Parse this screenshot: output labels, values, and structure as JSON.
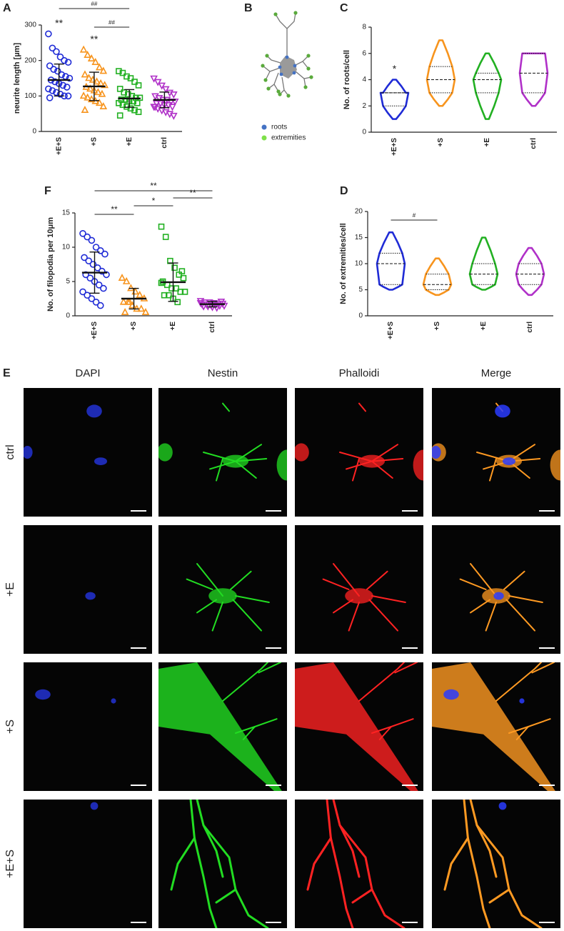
{
  "chart_data": [
    {
      "panel": "A",
      "type": "dot",
      "ylabel": "neurite length [µm]",
      "ylim": [
        0,
        300
      ],
      "yticks": [
        0,
        100,
        200,
        300
      ],
      "categories": [
        "+E+S",
        "+S",
        "+E",
        "ctrl"
      ],
      "groups": [
        {
          "color": "#1f2bd6",
          "marker": "circle",
          "mean": 145,
          "sd": 45,
          "points": [
            275,
            235,
            225,
            210,
            200,
            195,
            185,
            175,
            170,
            160,
            155,
            150,
            145,
            140,
            135,
            130,
            125,
            120,
            115,
            110,
            105,
            100,
            100,
            95
          ]
        },
        {
          "color": "#f7941d",
          "marker": "triangle",
          "mean": 127,
          "sd": 40,
          "points": [
            230,
            215,
            205,
            195,
            180,
            170,
            160,
            150,
            145,
            140,
            135,
            130,
            125,
            120,
            115,
            110,
            105,
            100,
            95,
            90,
            85,
            80,
            70,
            60
          ]
        },
        {
          "color": "#22b022",
          "marker": "square",
          "mean": 93,
          "sd": 25,
          "points": [
            170,
            165,
            155,
            150,
            140,
            130,
            120,
            110,
            105,
            100,
            95,
            95,
            90,
            90,
            85,
            85,
            80,
            80,
            75,
            70,
            65,
            60,
            55,
            45
          ]
        },
        {
          "color": "#b030c8",
          "marker": "triangle-down",
          "mean": 89,
          "sd": 22,
          "points": [
            150,
            140,
            130,
            120,
            110,
            105,
            100,
            95,
            90,
            90,
            85,
            85,
            80,
            80,
            75,
            75,
            70,
            70,
            65,
            60,
            55,
            50,
            45,
            70
          ]
        }
      ],
      "point_annotations": [
        {
          "category": "+E+S",
          "label": "**"
        },
        {
          "category": "+S",
          "label": "**"
        }
      ],
      "comparisons": [
        {
          "from": "+E+S",
          "to": "+E",
          "label": "##"
        },
        {
          "from": "+S",
          "to": "+E",
          "label": "##"
        }
      ]
    },
    {
      "panel": "C",
      "type": "violin",
      "ylabel": "No. of roots/cell",
      "ylim": [
        0,
        8
      ],
      "yticks": [
        0,
        2,
        4,
        6,
        8
      ],
      "categories": [
        "+E+S",
        "+S",
        "+E",
        "ctrl"
      ],
      "groups": [
        {
          "color": "#1f2bd6",
          "min": 1,
          "q1": 2,
          "median": 3,
          "q3": 3,
          "max": 4
        },
        {
          "color": "#f7941d",
          "min": 2,
          "q1": 3,
          "median": 4,
          "q3": 5,
          "max": 7
        },
        {
          "color": "#22b022",
          "min": 1,
          "q1": 3,
          "median": 4,
          "q3": 4.5,
          "max": 6
        },
        {
          "color": "#b030c8",
          "min": 2,
          "q1": 3,
          "median": 4.5,
          "q3": 6,
          "max": 6
        }
      ],
      "point_annotations": [
        {
          "category": "+E+S",
          "label": "*"
        }
      ],
      "comparisons": []
    },
    {
      "panel": "D",
      "type": "violin",
      "ylabel": "No. of extremities/cell",
      "ylim": [
        0,
        20
      ],
      "yticks": [
        0,
        5,
        10,
        15,
        20
      ],
      "categories": [
        "+E+S",
        "+S",
        "+E",
        "ctrl"
      ],
      "groups": [
        {
          "color": "#1f2bd6",
          "min": 5,
          "q1": 6,
          "median": 10,
          "q3": 12,
          "max": 16
        },
        {
          "color": "#f7941d",
          "min": 4,
          "q1": 5,
          "median": 6,
          "q3": 8,
          "max": 11
        },
        {
          "color": "#22b022",
          "min": 5,
          "q1": 6,
          "median": 8,
          "q3": 10,
          "max": 15
        },
        {
          "color": "#b030c8",
          "min": 4,
          "q1": 6,
          "median": 8,
          "q3": 10,
          "max": 13
        }
      ],
      "point_annotations": [],
      "comparisons": [
        {
          "from": "+E+S",
          "to": "+S",
          "label": "#"
        }
      ]
    },
    {
      "panel": "F",
      "type": "dot",
      "ylabel": "No. of filopodia per 10μm",
      "ylim": [
        0,
        15
      ],
      "yticks": [
        0,
        5,
        10,
        15
      ],
      "categories": [
        "+E+S",
        "+S",
        "+E",
        "ctrl"
      ],
      "groups": [
        {
          "color": "#1f2bd6",
          "marker": "circle",
          "mean": 6.3,
          "sd": 3.0,
          "points": [
            12,
            11.5,
            11,
            10,
            9.5,
            9,
            8.5,
            8,
            7.5,
            7,
            6.5,
            6,
            6,
            5.5,
            5,
            4.5,
            4,
            3.5,
            3,
            2.5,
            2,
            1.5
          ]
        },
        {
          "color": "#f7941d",
          "marker": "triangle",
          "mean": 2.5,
          "sd": 1.5,
          "points": [
            5.5,
            5,
            4,
            3.5,
            3,
            2.5,
            2,
            2,
            1.5,
            1,
            1,
            0.5,
            0.5,
            2
          ]
        },
        {
          "color": "#22b022",
          "marker": "square",
          "mean": 4.9,
          "sd": 2.8,
          "points": [
            13,
            11.5,
            8,
            7,
            6,
            5.5,
            5,
            4.5,
            4,
            4,
            3.5,
            3.5,
            3,
            3,
            2.5,
            2,
            6.5,
            4.8
          ]
        },
        {
          "color": "#b030c8",
          "marker": "triangle-down",
          "mean": 1.7,
          "sd": 0.4,
          "points": [
            2.2,
            2,
            2,
            1.9,
            1.8,
            1.8,
            1.7,
            1.7,
            1.6,
            1.6,
            1.5,
            1.5,
            1.4,
            1.4,
            1.3,
            1.2,
            2.1,
            1.9
          ]
        }
      ],
      "point_annotations": [],
      "comparisons": [
        {
          "from": "+E+S",
          "to": "ctrl",
          "label": "**"
        },
        {
          "from": "+E+S",
          "to": "+S",
          "label": "**"
        },
        {
          "from": "+S",
          "to": "+E",
          "label": "*"
        },
        {
          "from": "+E",
          "to": "ctrl",
          "label": "**"
        }
      ]
    }
  ],
  "diagram_b": {
    "panel": "B",
    "legend": [
      "roots",
      "extremities"
    ]
  },
  "image_grid": {
    "panel": "E",
    "columns": [
      "DAPI",
      "Nestin",
      "Phalloidi",
      "Merge"
    ],
    "rows": [
      "ctrl",
      "+E",
      "+S",
      "+E+S"
    ],
    "channel_colors": [
      "#2a3cff",
      "#22dd22",
      "#ff2222",
      "#ff9a22"
    ]
  }
}
